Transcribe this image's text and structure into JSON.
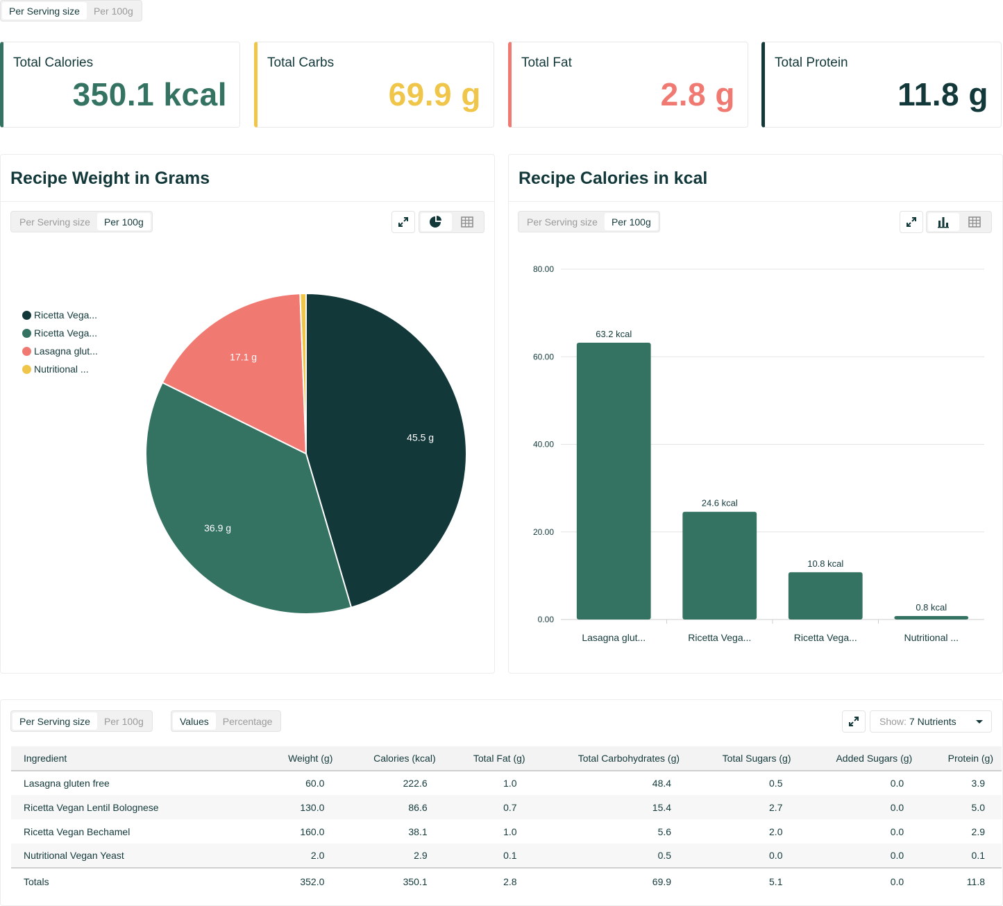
{
  "top_toggle": {
    "options": [
      "Per Serving size",
      "Per 100g"
    ],
    "selected": "Per Serving size"
  },
  "kpis": [
    {
      "label": "Total Calories",
      "value": "350.1 kcal",
      "color": "#347262"
    },
    {
      "label": "Total Carbs",
      "value": "69.9 g",
      "color": "#f0c64a"
    },
    {
      "label": "Total Fat",
      "value": "2.8 g",
      "color": "#f07a72"
    },
    {
      "label": "Total Protein",
      "value": "11.8 g",
      "color": "#12383a"
    }
  ],
  "weight_panel": {
    "title": "Recipe Weight in Grams",
    "toggle": {
      "options": [
        "Per Serving size",
        "Per 100g"
      ],
      "selected": "Per 100g"
    },
    "icons": {
      "expand": "expand-icon",
      "chart": "pie-chart-icon",
      "table": "table-grid-icon"
    }
  },
  "calories_panel": {
    "title": "Recipe Calories in kcal",
    "toggle": {
      "options": [
        "Per Serving size",
        "Per 100g"
      ],
      "selected": "Per 100g"
    },
    "icons": {
      "expand": "expand-icon",
      "chart": "bar-chart-icon",
      "table": "table-grid-icon"
    }
  },
  "chart_data": [
    {
      "type": "pie",
      "title": "Recipe Weight in Grams",
      "legend_position": "left",
      "slices": [
        {
          "label": "Ricetta Vega...",
          "value": 45.5,
          "data_label": "45.5 g",
          "color": "#12383a"
        },
        {
          "label": "Ricetta Vega...",
          "value": 36.9,
          "data_label": "36.9 g",
          "color": "#347262"
        },
        {
          "label": "Lasagna glut...",
          "value": 17.1,
          "data_label": "17.1 g",
          "color": "#f07a72"
        },
        {
          "label": "Nutritional ...",
          "value": 0.6,
          "data_label": "",
          "color": "#f0c64a"
        }
      ]
    },
    {
      "type": "bar",
      "title": "Recipe Calories in kcal",
      "categories": [
        "Lasagna glut...",
        "Ricetta Vega...",
        "Ricetta Vega...",
        "Nutritional ..."
      ],
      "values": [
        63.2,
        24.6,
        10.8,
        0.8
      ],
      "data_labels": [
        "63.2 kcal",
        "24.6 kcal",
        "10.8 kcal",
        "0.8 kcal"
      ],
      "yticks": [
        "0.00",
        "20.00",
        "40.00",
        "60.00",
        "80.00"
      ],
      "ylim": [
        0,
        80
      ],
      "grid": true,
      "color": "#347262"
    }
  ],
  "table_panel": {
    "basis_toggle": {
      "options": [
        "Per Serving size",
        "Per 100g"
      ],
      "selected": "Per Serving size"
    },
    "mode_toggle": {
      "options": [
        "Values",
        "Percentage"
      ],
      "selected": "Values"
    },
    "show_prefix": "Show:",
    "show_value": "7 Nutrients",
    "columns": [
      "Ingredient",
      "Weight (g)",
      "Calories (kcal)",
      "Total Fat (g)",
      "Total Carbohydrates (g)",
      "Total Sugars (g)",
      "Added Sugars (g)",
      "Protein (g)"
    ],
    "rows": [
      [
        "Lasagna gluten free",
        "60.0",
        "222.6",
        "1.0",
        "48.4",
        "0.5",
        "0.0",
        "3.9"
      ],
      [
        "Ricetta Vegan Lentil Bolognese",
        "130.0",
        "86.6",
        "0.7",
        "15.4",
        "2.7",
        "0.0",
        "5.0"
      ],
      [
        "Ricetta Vegan Bechamel",
        "160.0",
        "38.1",
        "1.0",
        "5.6",
        "2.0",
        "0.0",
        "2.9"
      ],
      [
        "Nutritional Vegan Yeast",
        "2.0",
        "2.9",
        "0.1",
        "0.5",
        "0.0",
        "0.0",
        "0.1"
      ]
    ],
    "totals": [
      "Totals",
      "352.0",
      "350.1",
      "2.8",
      "69.9",
      "5.1",
      "0.0",
      "11.8"
    ]
  }
}
